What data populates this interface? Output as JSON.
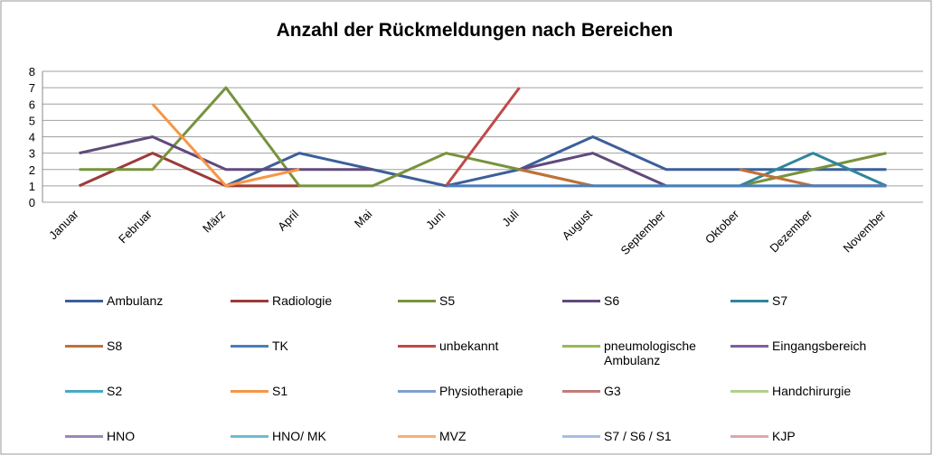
{
  "chart_data": {
    "type": "line",
    "title": "Anzahl der Rückmeldungen nach Bereichen",
    "categories": [
      "Januar",
      "Februar",
      "März",
      "April",
      "Mai",
      "Juni",
      "Juli",
      "August",
      "September",
      "Oktober",
      "Dezember",
      "November"
    ],
    "ylim": [
      0,
      8
    ],
    "yticks": [
      0,
      1,
      2,
      3,
      4,
      5,
      6,
      7,
      8
    ],
    "grid": true,
    "legend": "bottom",
    "series": [
      {
        "name": "Ambulanz",
        "color": "#3c5f9a",
        "values": [
          null,
          null,
          1,
          3,
          2,
          1,
          2,
          4,
          2,
          2,
          2,
          2
        ]
      },
      {
        "name": "Radiologie",
        "color": "#9c3b38",
        "values": [
          1,
          3,
          1,
          1,
          null,
          null,
          null,
          null,
          null,
          null,
          1,
          1
        ]
      },
      {
        "name": "S5",
        "color": "#77933c",
        "values": [
          2,
          2,
          7,
          1,
          1,
          3,
          2,
          1,
          1,
          1,
          2,
          3
        ]
      },
      {
        "name": "S6",
        "color": "#604a7b",
        "values": [
          3,
          4,
          2,
          2,
          2,
          null,
          2,
          3,
          1,
          null,
          null,
          null
        ]
      },
      {
        "name": "S7",
        "color": "#31859c",
        "values": [
          null,
          null,
          null,
          null,
          null,
          null,
          null,
          null,
          null,
          1,
          3,
          1
        ]
      },
      {
        "name": "S8",
        "color": "#c0703a",
        "values": [
          null,
          null,
          null,
          null,
          null,
          null,
          2,
          1,
          null,
          2,
          1,
          1
        ]
      },
      {
        "name": "TK",
        "color": "#4a7ebb",
        "values": [
          null,
          null,
          null,
          null,
          null,
          1,
          1,
          1,
          1,
          1,
          1,
          1
        ]
      },
      {
        "name": "unbekannt",
        "color": "#be4b48",
        "values": [
          null,
          null,
          null,
          null,
          null,
          1,
          7,
          null,
          null,
          null,
          null,
          null
        ]
      },
      {
        "name": "pneumologische Ambulanz",
        "color": "#98b954",
        "values": [
          null,
          null,
          null,
          null,
          null,
          null,
          null,
          null,
          null,
          null,
          null,
          null
        ]
      },
      {
        "name": "Eingangsbereich",
        "color": "#7d60a0",
        "values": [
          null,
          null,
          null,
          null,
          null,
          null,
          null,
          null,
          null,
          null,
          null,
          null
        ]
      },
      {
        "name": "S2",
        "color": "#46aac5",
        "values": [
          null,
          null,
          null,
          null,
          null,
          null,
          null,
          null,
          null,
          null,
          null,
          null
        ]
      },
      {
        "name": "S1",
        "color": "#f79646",
        "values": [
          null,
          6,
          1,
          2,
          null,
          null,
          null,
          null,
          null,
          null,
          null,
          null
        ]
      },
      {
        "name": "Physiotherapie",
        "color": "#7f9fcf",
        "values": [
          null,
          null,
          null,
          null,
          null,
          null,
          null,
          null,
          null,
          null,
          null,
          null
        ]
      },
      {
        "name": "G3",
        "color": "#c27c7a",
        "values": [
          null,
          null,
          null,
          null,
          null,
          null,
          null,
          null,
          null,
          null,
          null,
          null
        ]
      },
      {
        "name": "Handchirurgie",
        "color": "#b3cf8a",
        "values": [
          null,
          null,
          null,
          null,
          null,
          null,
          null,
          null,
          null,
          null,
          null,
          null
        ]
      },
      {
        "name": "HNO",
        "color": "#9b87b8",
        "values": [
          null,
          null,
          null,
          null,
          null,
          null,
          null,
          null,
          null,
          null,
          null,
          null
        ]
      },
      {
        "name": "HNO/ MK",
        "color": "#6fbcd0",
        "values": [
          null,
          null,
          null,
          null,
          null,
          null,
          null,
          null,
          null,
          null,
          null,
          null
        ]
      },
      {
        "name": "MVZ",
        "color": "#f9ae72",
        "values": [
          null,
          null,
          null,
          null,
          null,
          null,
          null,
          null,
          null,
          null,
          null,
          null
        ]
      },
      {
        "name": "S7 / S6 / S1",
        "color": "#a9bce0",
        "values": [
          null,
          null,
          null,
          null,
          null,
          null,
          null,
          null,
          null,
          null,
          null,
          null
        ]
      },
      {
        "name": "KJP",
        "color": "#dca9a8",
        "values": [
          null,
          null,
          null,
          null,
          null,
          null,
          null,
          null,
          null,
          null,
          null,
          null
        ]
      }
    ]
  }
}
